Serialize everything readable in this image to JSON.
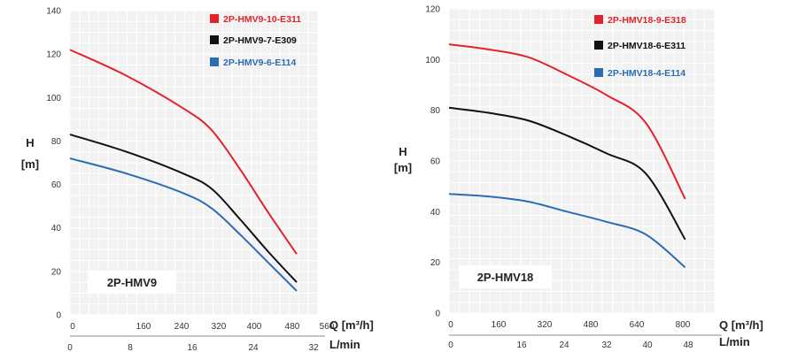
{
  "chart_data": [
    {
      "type": "line",
      "model_label": "2P-HMV9",
      "ylabel": "H",
      "yunit": "[m]",
      "xlabel_primary": "Q [m³/h]",
      "xlabel_secondary": "L/min",
      "ylim": [
        0,
        140
      ],
      "yticks": [
        "0",
        "20",
        "40",
        "60",
        "80",
        "100",
        "120",
        "140"
      ],
      "xlim": [
        0,
        35
      ],
      "xticks_lmin": [
        "0",
        "160",
        "240",
        "320",
        "400",
        "480",
        "560"
      ],
      "xticks_m3h": [
        "0",
        "8",
        "16",
        "24",
        "32"
      ],
      "grid": true,
      "legend_position": "top-right",
      "series": [
        {
          "name": "2P-HMV9-10-E311",
          "color": "#e3232b",
          "x": [
            0,
            8,
            16,
            20,
            24,
            28,
            32
          ],
          "y": [
            122,
            110,
            95,
            85,
            67,
            47,
            28
          ]
        },
        {
          "name": "2P-HMV9-7-E309",
          "color": "#111111",
          "x": [
            0,
            8,
            16,
            20,
            24,
            28,
            32
          ],
          "y": [
            83,
            75,
            65,
            58,
            44,
            29,
            15
          ]
        },
        {
          "name": "2P-HMV9-6-E114",
          "color": "#2a6db3",
          "x": [
            0,
            8,
            16,
            20,
            24,
            28,
            32
          ],
          "y": [
            72,
            65,
            56,
            49,
            37,
            24,
            11
          ]
        }
      ]
    },
    {
      "type": "line",
      "model_label": "2P-HMV18",
      "ylabel": "H",
      "yunit": "[m]",
      "xlabel_primary": "Q [m³/h]",
      "xlabel_secondary": "L/min",
      "ylim": [
        0,
        120
      ],
      "yticks": [
        "0",
        "20",
        "40",
        "60",
        "80",
        "100",
        "120"
      ],
      "xlim": [
        0,
        54
      ],
      "xticks_lmin": [
        "0",
        "160",
        "320",
        "480",
        "640",
        "800"
      ],
      "xticks_m3h": [
        "0",
        "16",
        "24",
        "32",
        "40",
        "48"
      ],
      "grid": true,
      "legend_position": "top-right",
      "series": [
        {
          "name": "2P-HMV18-9-E318",
          "color": "#e3232b",
          "x": [
            0,
            8,
            16,
            24,
            32,
            40,
            48
          ],
          "y": [
            106,
            104,
            101,
            94,
            86,
            75,
            45
          ]
        },
        {
          "name": "2P-HMV18-6-E311",
          "color": "#111111",
          "x": [
            0,
            8,
            16,
            24,
            32,
            40,
            48
          ],
          "y": [
            81,
            79,
            76,
            70,
            63,
            55,
            29
          ]
        },
        {
          "name": "2P-HMV18-4-E114",
          "color": "#2a6db3",
          "x": [
            0,
            8,
            16,
            24,
            32,
            40,
            48
          ],
          "y": [
            47,
            46,
            44,
            40,
            36,
            31,
            18
          ]
        }
      ]
    }
  ]
}
